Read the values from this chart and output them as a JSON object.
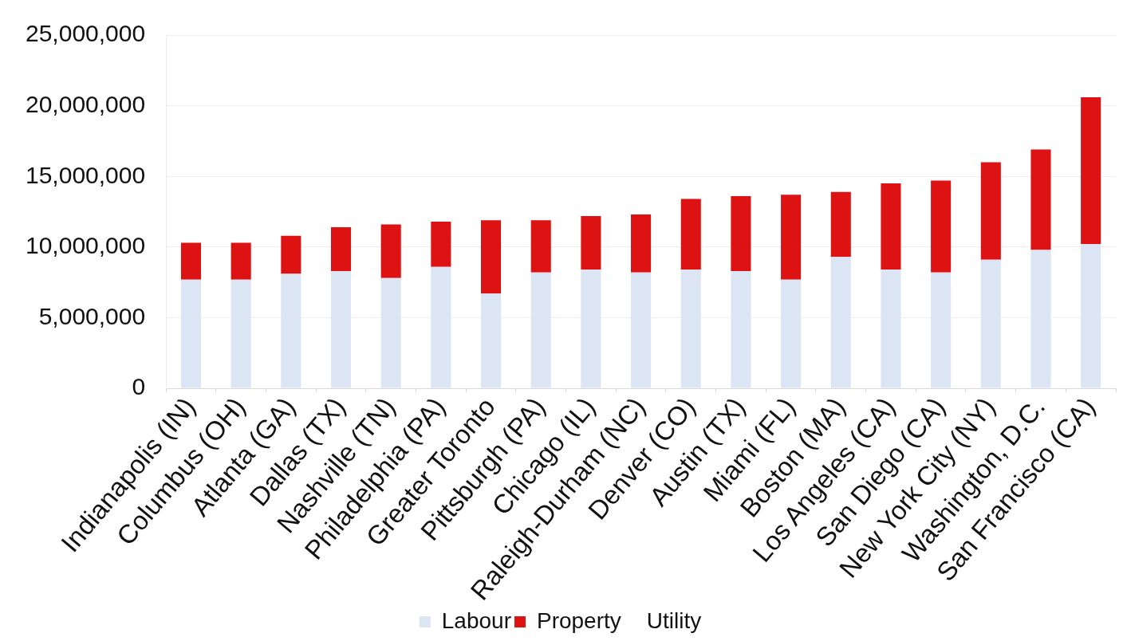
{
  "chart_data": {
    "type": "bar",
    "stacked": true,
    "categories": [
      "Indianapolis (IN)",
      "Columbus (OH)",
      "Atlanta (GA)",
      "Dallas (TX)",
      "Nashville (TN)",
      "Philadelphia (PA)",
      "Greater Toronto",
      "Pittsburgh (PA)",
      "Chicago (IL)",
      "Raleigh-Durham (NC)",
      "Denver (CO)",
      "Austin (TX)",
      "Miami (FL)",
      "Boston (MA)",
      "Los Angeles (CA)",
      "San Diego (CA)",
      "New York City (NY)",
      "Washington, D.C.",
      "San Francisco (CA)"
    ],
    "series": [
      {
        "name": "Labour",
        "color": "#dbe5f4",
        "values": [
          7700000,
          7700000,
          8100000,
          8300000,
          7800000,
          8600000,
          6700000,
          8200000,
          8400000,
          8200000,
          8400000,
          8300000,
          7700000,
          9300000,
          8400000,
          8200000,
          9100000,
          9800000,
          10200000
        ]
      },
      {
        "name": "Property",
        "color": "#dd1212",
        "values": [
          2600000,
          2600000,
          2700000,
          3100000,
          3800000,
          3200000,
          5200000,
          3700000,
          3800000,
          4100000,
          5000000,
          5300000,
          6000000,
          4600000,
          6100000,
          6500000,
          6900000,
          7100000,
          10400000
        ]
      },
      {
        "name": "Utility",
        "values": [
          null,
          null,
          null,
          null,
          null,
          null,
          null,
          null,
          null,
          null,
          null,
          null,
          null,
          null,
          null,
          null,
          null,
          null,
          null
        ]
      }
    ],
    "ylim": [
      0,
      25000000
    ],
    "yticks": [
      0,
      {
        "value": 5000000,
        "label": "5,000,000"
      },
      {
        "value": 10000000,
        "label": "10,000,000"
      },
      {
        "value": 15000000,
        "label": "15,000,000"
      },
      {
        "value": 20000000,
        "label": "20,000,000"
      },
      {
        "value": 25000000,
        "label": "25,000,000"
      }
    ],
    "grid": "y",
    "legend": "bottom"
  }
}
